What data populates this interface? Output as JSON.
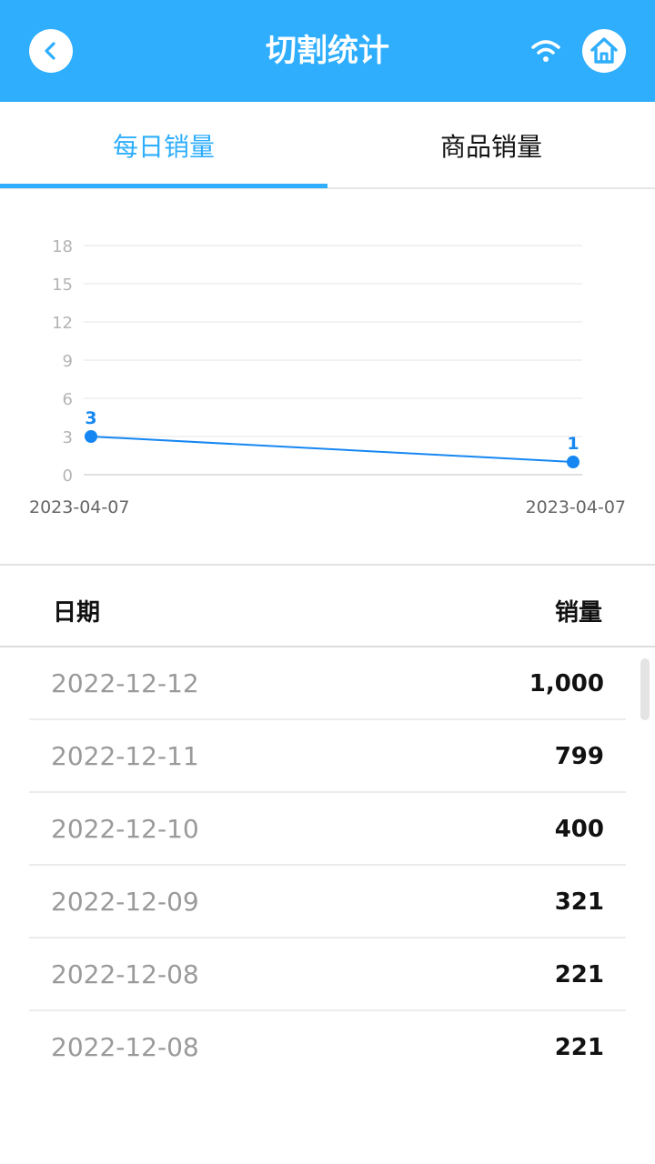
{
  "header": {
    "title": "切割统计",
    "back_icon": "chevron-left-icon",
    "wifi_icon": "wifi-icon",
    "home_icon": "home-icon"
  },
  "tabs": [
    {
      "label": "每日销量",
      "active": true
    },
    {
      "label": "商品销量",
      "active": false
    }
  ],
  "colors": {
    "accent": "#2eaefd",
    "series": "#1687f2"
  },
  "chart_data": {
    "type": "line",
    "x": [
      "2023-04-07",
      "2023-04-07"
    ],
    "series": [
      {
        "values": [
          3,
          1
        ]
      }
    ],
    "data_labels": [
      "3",
      "1"
    ],
    "yticks": [
      "0",
      "3",
      "6",
      "9",
      "12",
      "15",
      "18"
    ],
    "ylim": [
      0,
      18
    ],
    "grid": true
  },
  "table": {
    "headers": {
      "date": "日期",
      "sales": "销量"
    },
    "rows": [
      {
        "date": "2022-12-12",
        "sales": "1,000"
      },
      {
        "date": "2022-12-11",
        "sales": "799"
      },
      {
        "date": "2022-12-10",
        "sales": "400"
      },
      {
        "date": "2022-12-09",
        "sales": "321"
      },
      {
        "date": "2022-12-08",
        "sales": "221"
      },
      {
        "date": "2022-12-08",
        "sales": "221"
      }
    ]
  }
}
